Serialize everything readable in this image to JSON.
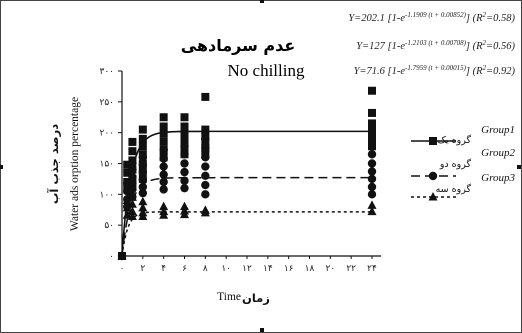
{
  "chart_data": {
    "type": "scatter",
    "title_fa": "عدم سرمادهی",
    "title_en": "No chilling",
    "xlabel_en": "Time",
    "xlabel_fa": "زمان",
    "ylabel_fa": "درصد جذب آب",
    "ylabel_en": "Water ads orption percentage",
    "x_ticks": [
      "۰",
      "۲",
      "۴",
      "۶",
      "۸",
      "۱۰",
      "۱۲",
      "۱۴",
      "۱۶",
      "۱۸",
      "۲۰",
      "۲۲",
      "۲۴"
    ],
    "x_tick_values": [
      0,
      2,
      4,
      6,
      8,
      10,
      12,
      14,
      16,
      18,
      20,
      22,
      24
    ],
    "y_ticks": [
      "۰",
      "۵۰",
      "۱۰۰",
      "۱۵۰",
      "۲۰۰",
      "۲۵۰",
      "۳۰۰"
    ],
    "y_tick_values": [
      0,
      50,
      100,
      150,
      200,
      250,
      300
    ],
    "xlim": [
      0,
      24.5
    ],
    "ylim": [
      0,
      300
    ],
    "grid": false,
    "legend_position": "right",
    "equations": [
      {
        "lead": "Y=202.1 [1-e",
        "exp": "-1.1909 (t + 0.00852)",
        "tail": "] (R",
        "sq": "2",
        "r2": "=0.58)"
      },
      {
        "lead": "Y=127 [1-e",
        "exp": "-1.2103 (t + 0.00708)",
        "tail": "] (R",
        "sq": "2",
        "r2": "=0.56)"
      },
      {
        "lead": "Y=71.6 [1-e",
        "exp": "-1.7959 (t + 0.00015)",
        "tail": "] (R",
        "sq": "2",
        "r2": "=0.92)"
      }
    ],
    "series": [
      {
        "name": "Group1",
        "name_fa": "گروه یک",
        "marker": "square",
        "line_style": "solid",
        "model": {
          "a": 202.1,
          "k": 1.1909,
          "t0": 0.00852
        },
        "points": [
          [
            0,
            0
          ],
          [
            0.5,
            148
          ],
          [
            0.5,
            135
          ],
          [
            0.5,
            120
          ],
          [
            0.5,
            108
          ],
          [
            1,
            185
          ],
          [
            1,
            170
          ],
          [
            1,
            155
          ],
          [
            1,
            140
          ],
          [
            1,
            125
          ],
          [
            1,
            112
          ],
          [
            2,
            205
          ],
          [
            2,
            190
          ],
          [
            2,
            178
          ],
          [
            2,
            165
          ],
          [
            2,
            150
          ],
          [
            2,
            138
          ],
          [
            2,
            125
          ],
          [
            4,
            225
          ],
          [
            4,
            210
          ],
          [
            4,
            198
          ],
          [
            4,
            185
          ],
          [
            4,
            172
          ],
          [
            4,
            160
          ],
          [
            6,
            225
          ],
          [
            6,
            210
          ],
          [
            6,
            198
          ],
          [
            6,
            188
          ],
          [
            6,
            176
          ],
          [
            6,
            165
          ],
          [
            8,
            258
          ],
          [
            8,
            205
          ],
          [
            8,
            195
          ],
          [
            8,
            185
          ],
          [
            8,
            175
          ],
          [
            8,
            165
          ],
          [
            24,
            268
          ],
          [
            24,
            232
          ],
          [
            24,
            215
          ],
          [
            24,
            205
          ],
          [
            24,
            198
          ],
          [
            24,
            188
          ],
          [
            24,
            178
          ]
        ]
      },
      {
        "name": "Group2",
        "name_fa": "گروه دو",
        "marker": "circle",
        "line_style": "dashed",
        "model": {
          "a": 127,
          "k": 1.2103,
          "t0": 0.00708
        },
        "points": [
          [
            0,
            0
          ],
          [
            0.5,
            118
          ],
          [
            0.5,
            105
          ],
          [
            0.5,
            92
          ],
          [
            0.5,
            80
          ],
          [
            1,
            150
          ],
          [
            1,
            140
          ],
          [
            1,
            128
          ],
          [
            1,
            118
          ],
          [
            1,
            108
          ],
          [
            1,
            96
          ],
          [
            2,
            160
          ],
          [
            2,
            148
          ],
          [
            2,
            136
          ],
          [
            2,
            124
          ],
          [
            2,
            112
          ],
          [
            2,
            102
          ],
          [
            4,
            172
          ],
          [
            4,
            158
          ],
          [
            4,
            145
          ],
          [
            4,
            132
          ],
          [
            4,
            120
          ],
          [
            4,
            108
          ],
          [
            6,
            178
          ],
          [
            6,
            165
          ],
          [
            6,
            150
          ],
          [
            6,
            136
          ],
          [
            6,
            122
          ],
          [
            6,
            110
          ],
          [
            8,
            190
          ],
          [
            8,
            175
          ],
          [
            8,
            160
          ],
          [
            8,
            145
          ],
          [
            8,
            130
          ],
          [
            8,
            115
          ],
          [
            8,
            100
          ],
          [
            24,
            165
          ],
          [
            24,
            150
          ],
          [
            24,
            137
          ],
          [
            24,
            125
          ],
          [
            24,
            112
          ],
          [
            24,
            100
          ]
        ]
      },
      {
        "name": "Group3",
        "name_fa": "گروه سه",
        "marker": "triangle",
        "line_style": "dotted",
        "model": {
          "a": 71.6,
          "k": 1.7959,
          "t0": 0.00015
        },
        "points": [
          [
            0,
            0
          ],
          [
            0.5,
            90
          ],
          [
            0.5,
            78
          ],
          [
            0.5,
            66
          ],
          [
            1,
            95
          ],
          [
            1,
            84
          ],
          [
            1,
            72
          ],
          [
            1,
            64
          ],
          [
            2,
            88
          ],
          [
            2,
            78
          ],
          [
            2,
            70
          ],
          [
            2,
            64
          ],
          [
            4,
            80
          ],
          [
            4,
            72
          ],
          [
            4,
            66
          ],
          [
            6,
            80
          ],
          [
            6,
            73
          ],
          [
            6,
            67
          ],
          [
            8,
            74
          ],
          [
            8,
            70
          ],
          [
            24,
            82
          ],
          [
            24,
            72
          ]
        ]
      }
    ]
  }
}
